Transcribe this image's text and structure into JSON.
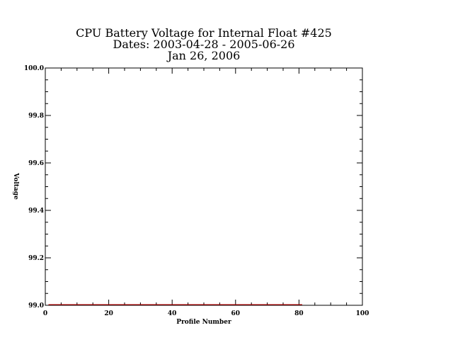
{
  "chart_data": {
    "type": "line",
    "title_lines": [
      "CPU Battery Voltage for Internal Float #425",
      "Dates:  2003-04-28 -  2005-06-26",
      "Jan 26, 2006"
    ],
    "xlabel": "Profile Number",
    "ylabel": "Voltage",
    "xlim": [
      0,
      100
    ],
    "ylim": [
      99.0,
      100.0
    ],
    "x_ticks": [
      "0",
      "20",
      "40",
      "60",
      "80",
      "100"
    ],
    "y_ticks": [
      "99.0",
      "99.2",
      "99.4",
      "99.6",
      "99.8",
      "100.0"
    ],
    "grid": false,
    "series": [
      {
        "color": "#cc0000",
        "x": [
          1,
          81
        ],
        "y": [
          99.0,
          99.0
        ]
      }
    ]
  }
}
